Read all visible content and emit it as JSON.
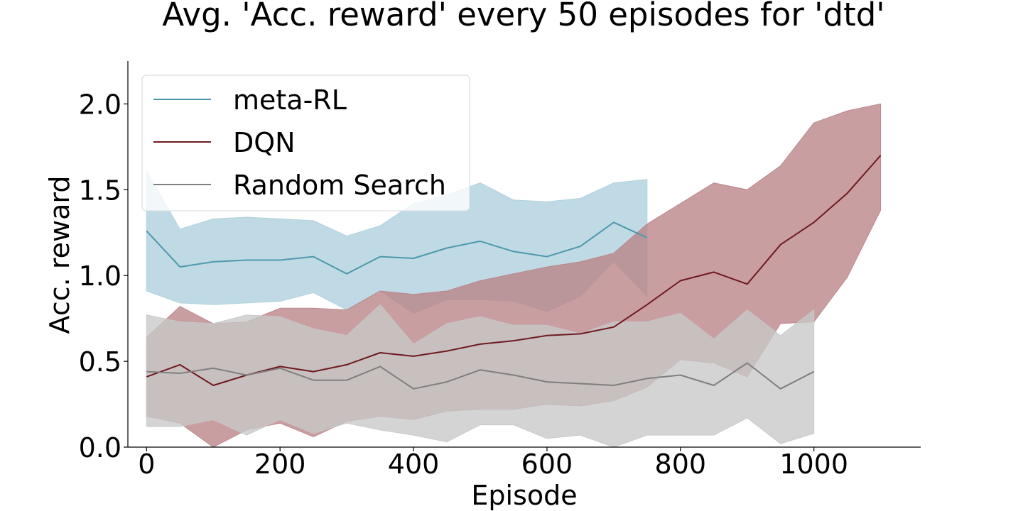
{
  "chart_data": {
    "type": "line",
    "title": "Avg. 'Acc. reward' every 50 episodes for 'dtd'",
    "xlabel": "Episode",
    "ylabel": "Acc. reward",
    "xlim": [
      -28,
      1160
    ],
    "ylim": [
      0,
      2.25
    ],
    "xticks": [
      0,
      200,
      400,
      600,
      800,
      1000
    ],
    "xtick_labels": [
      "0",
      "200",
      "400",
      "600",
      "800",
      "1000"
    ],
    "yticks": [
      0.0,
      0.5,
      1.0,
      1.5,
      2.0
    ],
    "ytick_labels": [
      "0.0",
      "0.5",
      "1.0",
      "1.5",
      "2.0"
    ],
    "grid": false,
    "legend_position": "top-left",
    "series": [
      {
        "name": "meta-RL",
        "color": "#4e98ad",
        "band_color": "#add0dc",
        "x": [
          0,
          50,
          100,
          150,
          200,
          250,
          300,
          350,
          400,
          450,
          500,
          550,
          600,
          650,
          700,
          750
        ],
        "y": [
          1.26,
          1.05,
          1.08,
          1.09,
          1.09,
          1.11,
          1.01,
          1.11,
          1.1,
          1.16,
          1.2,
          1.14,
          1.11,
          1.17,
          1.31,
          1.22
        ],
        "lower": [
          0.91,
          0.84,
          0.83,
          0.84,
          0.85,
          0.9,
          0.8,
          0.91,
          0.78,
          0.86,
          0.86,
          0.85,
          0.79,
          0.88,
          1.08,
          0.88
        ],
        "upper": [
          1.61,
          1.27,
          1.33,
          1.34,
          1.33,
          1.32,
          1.23,
          1.29,
          1.42,
          1.47,
          1.54,
          1.44,
          1.43,
          1.45,
          1.54,
          1.56
        ]
      },
      {
        "name": "DQN",
        "color": "#6e1a1f",
        "band_color": "#b98387",
        "x": [
          0,
          50,
          100,
          150,
          200,
          250,
          300,
          350,
          400,
          450,
          500,
          550,
          600,
          650,
          700,
          750,
          800,
          850,
          900,
          950,
          1000,
          1050,
          1100
        ],
        "y": [
          0.41,
          0.48,
          0.36,
          0.42,
          0.47,
          0.44,
          0.48,
          0.55,
          0.53,
          0.56,
          0.6,
          0.62,
          0.65,
          0.66,
          0.7,
          0.83,
          0.97,
          1.02,
          0.95,
          1.18,
          1.31,
          1.48,
          1.7
        ],
        "lower": [
          0.18,
          0.14,
          0.0,
          0.1,
          0.14,
          0.06,
          0.15,
          0.18,
          0.16,
          0.21,
          0.22,
          0.22,
          0.25,
          0.24,
          0.27,
          0.35,
          0.51,
          0.49,
          0.41,
          0.72,
          0.73,
          0.99,
          1.38
        ],
        "upper": [
          0.64,
          0.82,
          0.72,
          0.73,
          0.81,
          0.81,
          0.8,
          0.91,
          0.89,
          0.91,
          0.97,
          1.01,
          1.05,
          1.08,
          1.13,
          1.3,
          1.42,
          1.54,
          1.5,
          1.64,
          1.89,
          1.96,
          2.0
        ]
      },
      {
        "name": "Random Search",
        "color": "#7f7f7f",
        "band_color": "#c8c8c8",
        "x": [
          0,
          50,
          100,
          150,
          200,
          250,
          300,
          350,
          400,
          450,
          500,
          550,
          600,
          650,
          700,
          750,
          800,
          850,
          900,
          950,
          1000
        ],
        "y": [
          0.44,
          0.43,
          0.46,
          0.42,
          0.46,
          0.39,
          0.39,
          0.47,
          0.34,
          0.38,
          0.45,
          0.42,
          0.38,
          0.37,
          0.36,
          0.4,
          0.42,
          0.36,
          0.49,
          0.34,
          0.44
        ],
        "lower": [
          0.12,
          0.12,
          0.16,
          0.07,
          0.16,
          0.08,
          0.14,
          0.1,
          0.07,
          0.03,
          0.13,
          0.13,
          0.05,
          0.07,
          0.0,
          0.07,
          0.07,
          0.07,
          0.17,
          0.02,
          0.08
        ],
        "upper": [
          0.77,
          0.73,
          0.72,
          0.77,
          0.76,
          0.69,
          0.65,
          0.83,
          0.6,
          0.72,
          0.76,
          0.71,
          0.71,
          0.66,
          0.73,
          0.73,
          0.78,
          0.63,
          0.8,
          0.65,
          0.8
        ]
      }
    ]
  }
}
